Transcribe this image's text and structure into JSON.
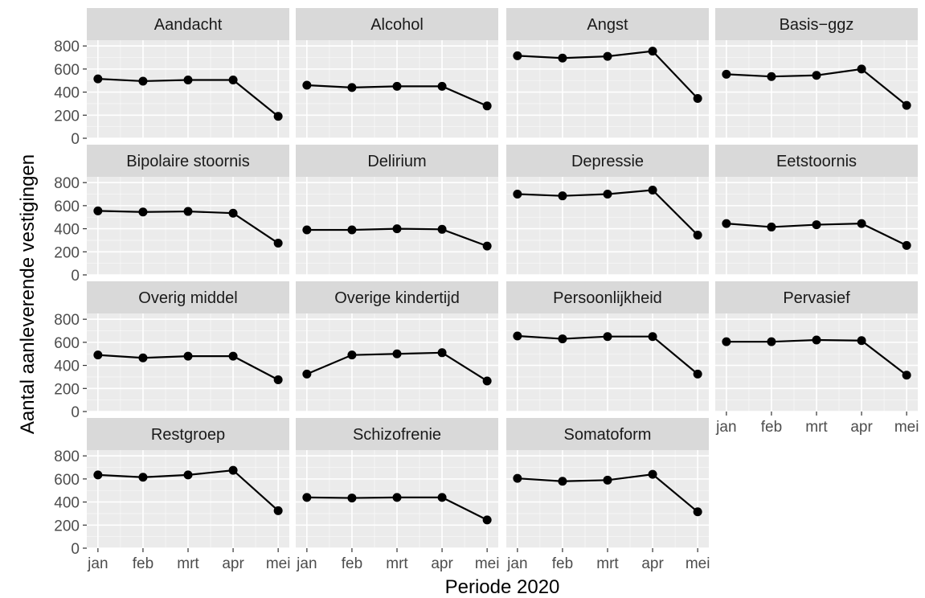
{
  "chart_data": {
    "type": "line",
    "xlabel": "Periode 2020",
    "ylabel": "Aantal aanleverende vestigingen",
    "categories": [
      "jan",
      "feb",
      "mrt",
      "apr",
      "mei"
    ],
    "ylim": [
      0,
      850
    ],
    "yticks": [
      0,
      200,
      400,
      600,
      800
    ],
    "grid": true,
    "facets": [
      {
        "name": "Aandacht",
        "values": [
          515,
          495,
          505,
          505,
          190
        ]
      },
      {
        "name": "Alcohol",
        "values": [
          460,
          440,
          450,
          450,
          280
        ]
      },
      {
        "name": "Angst",
        "values": [
          715,
          695,
          710,
          755,
          345
        ]
      },
      {
        "name": "Basis−ggz",
        "values": [
          555,
          535,
          545,
          600,
          285
        ]
      },
      {
        "name": "Bipolaire stoornis",
        "values": [
          555,
          545,
          550,
          535,
          275
        ]
      },
      {
        "name": "Delirium",
        "values": [
          390,
          390,
          400,
          395,
          250
        ]
      },
      {
        "name": "Depressie",
        "values": [
          700,
          685,
          700,
          735,
          345
        ]
      },
      {
        "name": "Eetstoornis",
        "values": [
          445,
          415,
          435,
          445,
          255
        ]
      },
      {
        "name": "Overig middel",
        "values": [
          490,
          465,
          480,
          480,
          275
        ]
      },
      {
        "name": "Overige kindertijd",
        "values": [
          325,
          490,
          500,
          510,
          265
        ]
      },
      {
        "name": "Persoonlijkheid",
        "values": [
          655,
          630,
          650,
          650,
          325
        ]
      },
      {
        "name": "Pervasief",
        "values": [
          605,
          605,
          620,
          615,
          315
        ]
      },
      {
        "name": "Restgroep",
        "values": [
          635,
          615,
          635,
          675,
          325
        ]
      },
      {
        "name": "Schizofrenie",
        "values": [
          440,
          435,
          440,
          440,
          245
        ]
      },
      {
        "name": "Somatoform",
        "values": [
          605,
          580,
          590,
          640,
          315
        ]
      }
    ],
    "colors": {
      "panel": "#ebebeb",
      "strip": "#d9d9d9",
      "grid_major": "#ffffff",
      "line": "#000000"
    }
  }
}
